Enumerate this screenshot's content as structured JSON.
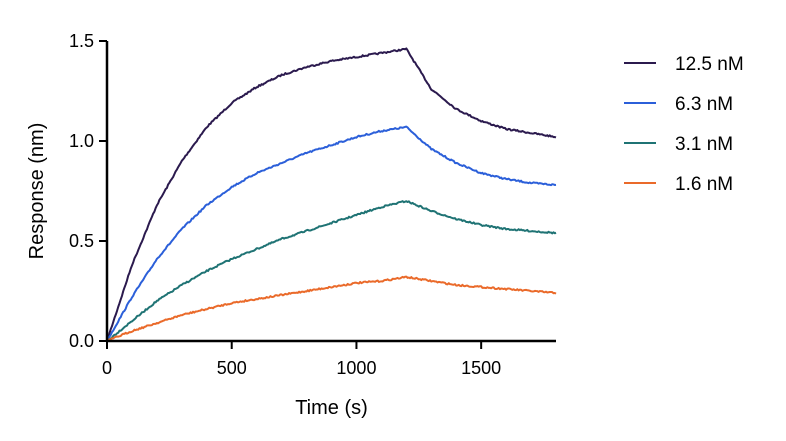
{
  "chart_data": {
    "type": "line",
    "title": "",
    "xlabel": "Time (s)",
    "ylabel": "Response  (nm)",
    "xlim": [
      0,
      1800
    ],
    "ylim": [
      0,
      1.5
    ],
    "xticks": [
      0,
      500,
      1000,
      1500
    ],
    "xtick_labels": [
      "0",
      "500",
      "1000",
      "1500"
    ],
    "yticks": [
      0,
      0.5,
      1.0,
      1.5
    ],
    "ytick_labels": [
      "0.0",
      "0.5",
      "1.0",
      "1.5"
    ],
    "grid": false,
    "legend_position": "right",
    "x": [
      0,
      100,
      200,
      300,
      400,
      500,
      600,
      700,
      800,
      900,
      1000,
      1100,
      1200,
      1300,
      1400,
      1500,
      1600,
      1700,
      1800
    ],
    "series": [
      {
        "name": "12.5 nM",
        "color": "#2b1a4e",
        "values": [
          0.0,
          0.38,
          0.68,
          0.9,
          1.07,
          1.19,
          1.27,
          1.33,
          1.37,
          1.4,
          1.42,
          1.44,
          1.46,
          1.26,
          1.16,
          1.1,
          1.06,
          1.04,
          1.02
        ]
      },
      {
        "name": "6.3 nM",
        "color": "#2b5fd9",
        "values": [
          0.0,
          0.22,
          0.41,
          0.56,
          0.68,
          0.77,
          0.84,
          0.89,
          0.94,
          0.98,
          1.02,
          1.05,
          1.07,
          0.96,
          0.89,
          0.84,
          0.81,
          0.79,
          0.78
        ]
      },
      {
        "name": "3.1 nM",
        "color": "#1f7374",
        "values": [
          0.0,
          0.1,
          0.2,
          0.28,
          0.35,
          0.41,
          0.46,
          0.51,
          0.55,
          0.59,
          0.63,
          0.67,
          0.7,
          0.65,
          0.61,
          0.58,
          0.56,
          0.55,
          0.54
        ]
      },
      {
        "name": "1.6 nM",
        "color": "#ea6a2a",
        "values": [
          0.0,
          0.05,
          0.09,
          0.13,
          0.16,
          0.19,
          0.21,
          0.23,
          0.25,
          0.27,
          0.29,
          0.3,
          0.32,
          0.3,
          0.28,
          0.27,
          0.26,
          0.25,
          0.24
        ]
      }
    ]
  }
}
